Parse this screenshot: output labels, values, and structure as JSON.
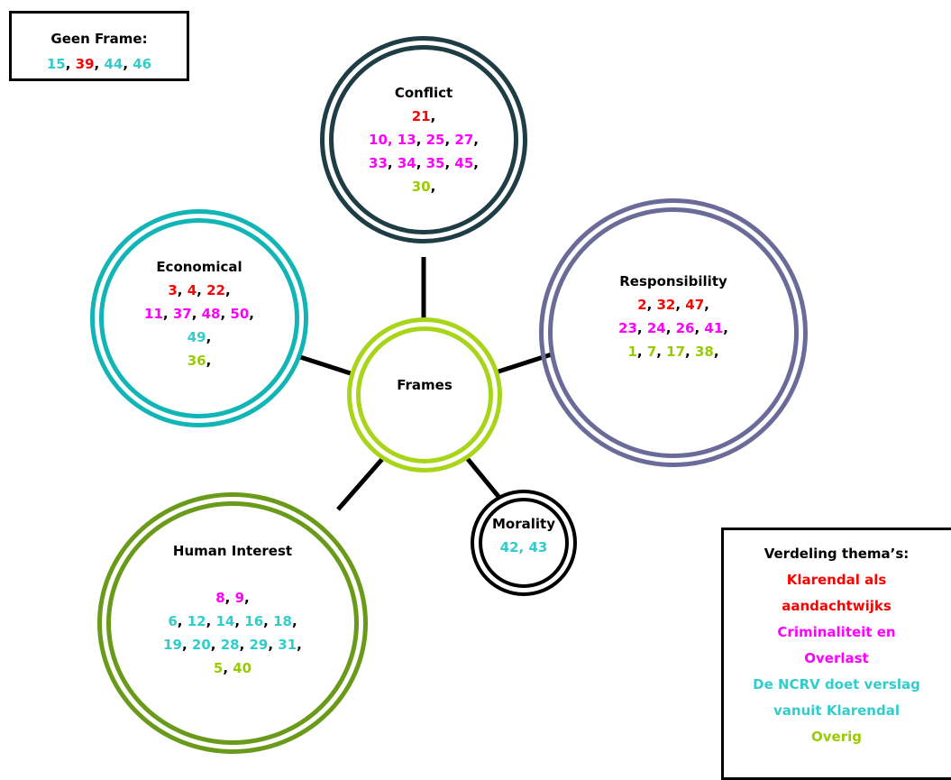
{
  "colors": {
    "red": "#ff0000",
    "magenta": "#ff00ff",
    "cyan": "#33cccc",
    "green": "#99cc00",
    "black": "#000000",
    "conflict_ring": "#1f3d44",
    "responsibility_ring": "#6b6b99",
    "economical_ring": "#12b5b5",
    "human_ring": "#6a9a1a",
    "frames_ring": "#a8d41a",
    "morality_ring": "#000000"
  },
  "geen_frame": {
    "title": "Geen Frame:",
    "items": [
      {
        "n": "15",
        "c": "cyan",
        "s": ", "
      },
      {
        "n": "39",
        "c": "red",
        "s": ", "
      },
      {
        "n": "44",
        "c": "cyan",
        "s": ", "
      },
      {
        "n": "46",
        "c": "cyan",
        "s": ""
      }
    ]
  },
  "frames_center": {
    "title": "Frames"
  },
  "conflict": {
    "title": "Conflict",
    "lines": [
      [
        {
          "n": "21",
          "c": "red",
          "s": ","
        }
      ],
      [
        {
          "n": "10, 13",
          "c": "magenta",
          "s": ", "
        },
        {
          "n": "25",
          "c": "magenta",
          "s": ", "
        },
        {
          "n": "27",
          "c": "magenta",
          "s": ","
        }
      ],
      [
        {
          "n": "33",
          "c": "magenta",
          "s": ", "
        },
        {
          "n": "34",
          "c": "magenta",
          "s": ", "
        },
        {
          "n": "35",
          "c": "magenta",
          "s": ", "
        },
        {
          "n": "45",
          "c": "magenta",
          "s": ","
        }
      ],
      [
        {
          "n": "30",
          "c": "green",
          "s": ","
        }
      ]
    ]
  },
  "economical": {
    "title": "Economical",
    "lines": [
      [
        {
          "n": "3",
          "c": "red",
          "s": ", "
        },
        {
          "n": "4",
          "c": "red",
          "s": ", "
        },
        {
          "n": "22",
          "c": "red",
          "s": ","
        }
      ],
      [
        {
          "n": "11",
          "c": "magenta",
          "s": ", "
        },
        {
          "n": "37",
          "c": "magenta",
          "s": ", "
        },
        {
          "n": "48",
          "c": "magenta",
          "s": ", "
        },
        {
          "n": "50",
          "c": "magenta",
          "s": ","
        }
      ],
      [
        {
          "n": "49",
          "c": "cyan",
          "s": ","
        }
      ],
      [
        {
          "n": "36",
          "c": "green",
          "s": ","
        }
      ]
    ]
  },
  "responsibility": {
    "title": "Responsibility",
    "lines": [
      [
        {
          "n": "2",
          "c": "red",
          "s": ", "
        },
        {
          "n": "32",
          "c": "red",
          "s": ", "
        },
        {
          "n": "47",
          "c": "red",
          "s": ","
        }
      ],
      [
        {
          "n": "23",
          "c": "magenta",
          "s": ", "
        },
        {
          "n": "24",
          "c": "magenta",
          "s": ", "
        },
        {
          "n": "26",
          "c": "magenta",
          "s": ", "
        },
        {
          "n": "41",
          "c": "magenta",
          "s": ","
        }
      ],
      [
        {
          "n": "1",
          "c": "green",
          "s": ", "
        },
        {
          "n": "7",
          "c": "green",
          "s": ", "
        },
        {
          "n": "17",
          "c": "green",
          "s": ", "
        },
        {
          "n": "38",
          "c": "green",
          "s": ","
        }
      ]
    ]
  },
  "human_interest": {
    "title": "Human Interest",
    "lines": [
      [
        {
          "n": "8",
          "c": "magenta",
          "s": ", "
        },
        {
          "n": "9",
          "c": "magenta",
          "s": ","
        }
      ],
      [
        {
          "n": "6",
          "c": "cyan",
          "s": ", "
        },
        {
          "n": "12",
          "c": "cyan",
          "s": ", "
        },
        {
          "n": "14",
          "c": "cyan",
          "s": ", "
        },
        {
          "n": "16",
          "c": "cyan",
          "s": ", "
        },
        {
          "n": "18",
          "c": "cyan",
          "s": ","
        }
      ],
      [
        {
          "n": "19",
          "c": "cyan",
          "s": ", "
        },
        {
          "n": "20",
          "c": "cyan",
          "s": ", "
        },
        {
          "n": "28",
          "c": "cyan",
          "s": ", "
        },
        {
          "n": "29",
          "c": "cyan",
          "s": ", "
        },
        {
          "n": "31",
          "c": "cyan",
          "s": ","
        }
      ],
      [
        {
          "n": "5",
          "c": "green",
          "s": ", "
        },
        {
          "n": "40",
          "c": "green",
          "s": ""
        }
      ]
    ]
  },
  "morality": {
    "title": "Morality",
    "lines": [
      [
        {
          "n": "42, 43",
          "c": "cyan",
          "s": ""
        }
      ]
    ]
  },
  "legend": {
    "title": "Verdeling thema’s:",
    "entries": [
      {
        "text": "Klarendal als",
        "c": "red"
      },
      {
        "text": "aandachtwijks",
        "c": "red"
      },
      {
        "text": "Criminaliteit en",
        "c": "magenta"
      },
      {
        "text": "Overlast",
        "c": "magenta"
      },
      {
        "text": "De NCRV doet verslag",
        "c": "cyan"
      },
      {
        "text": "vanuit Klarendal",
        "c": "cyan"
      },
      {
        "text": "Overig",
        "c": "green"
      }
    ]
  }
}
